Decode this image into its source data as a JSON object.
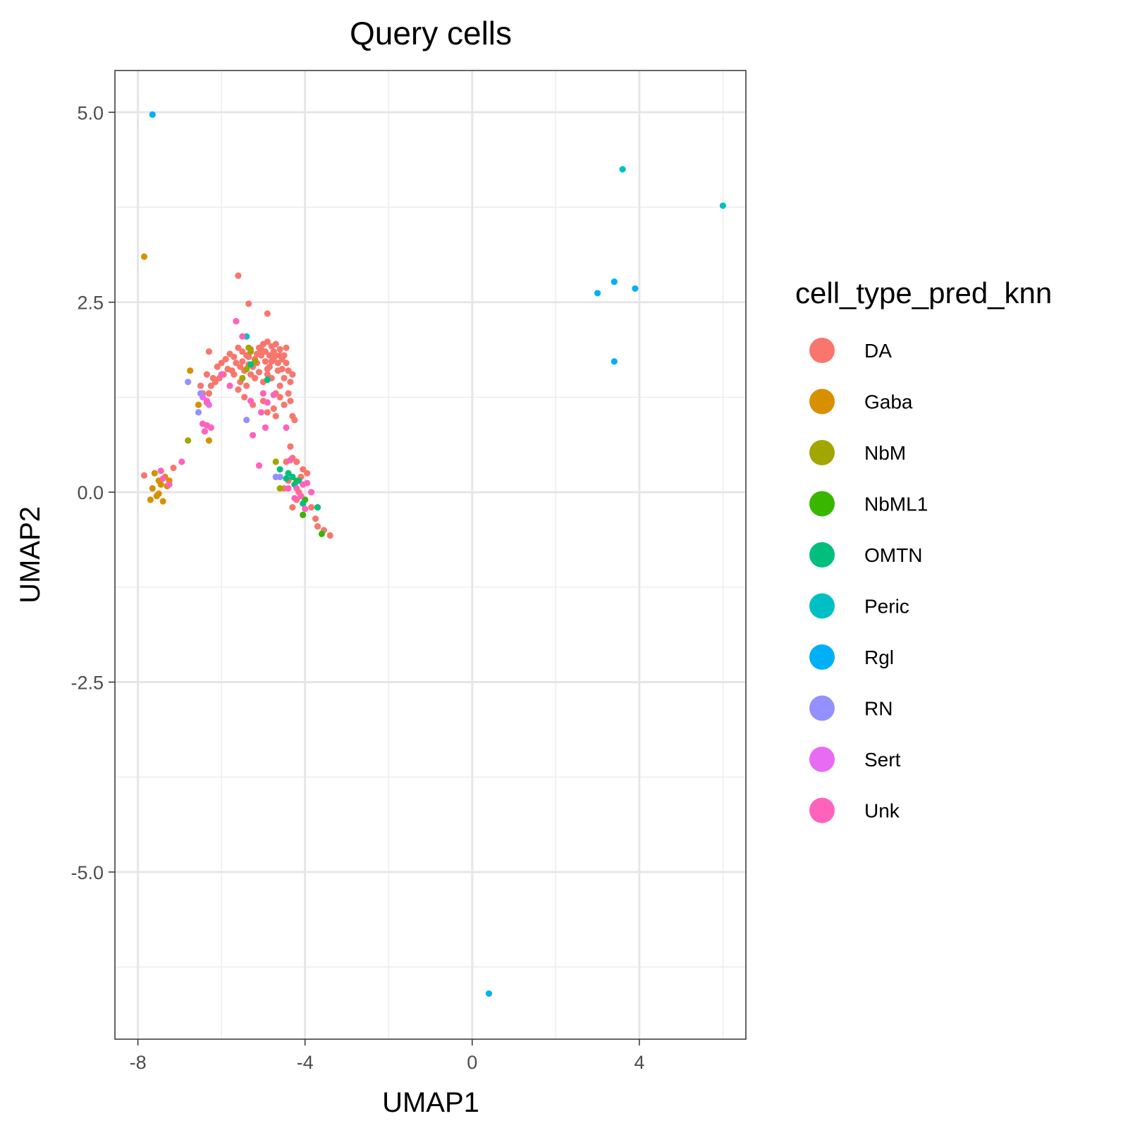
{
  "chart_data": {
    "type": "scatter",
    "title": "Query cells",
    "xlabel": "UMAP1",
    "ylabel": "UMAP2",
    "xlim": [
      -8.55,
      6.55
    ],
    "ylim": [
      -7.2,
      5.55
    ],
    "x_ticks": [
      -8,
      -4,
      0,
      4
    ],
    "x_tick_labels": [
      "-8",
      "-4",
      "0",
      "4"
    ],
    "y_ticks": [
      5.0,
      2.5,
      0.0,
      -2.5,
      -5.0
    ],
    "y_tick_labels": [
      "5.0",
      "2.5",
      "0.0",
      "-2.5",
      "-5.0"
    ],
    "grid": true,
    "legend": {
      "title": "cell_type_pred_knn",
      "position": "right",
      "entries": [
        "DA",
        "Gaba",
        "NbM",
        "NbML1",
        "OMTN",
        "Peric",
        "Rgl",
        "RN",
        "Sert",
        "Unk"
      ]
    },
    "colors": {
      "DA": "#F8766D",
      "Gaba": "#D89000",
      "NbM": "#A3A500",
      "NbML1": "#39B600",
      "OMTN": "#00BF7D",
      "Peric": "#00BFC4",
      "Rgl": "#00B0F6",
      "RN": "#9590FF",
      "Sert": "#E76BF3",
      "Unk": "#FF62BC"
    },
    "series": [
      {
        "name": "DA",
        "points": [
          [
            -7.85,
            0.22
          ],
          [
            -5.6,
            2.85
          ],
          [
            -5.35,
            2.48
          ],
          [
            -4.9,
            2.35
          ],
          [
            -6.3,
            1.85
          ],
          [
            -6.5,
            1.4
          ],
          [
            -6.45,
            1.3
          ],
          [
            -6.35,
            1.55
          ],
          [
            -6.2,
            1.5
          ],
          [
            -6.1,
            1.65
          ],
          [
            -6.0,
            1.7
          ],
          [
            -5.9,
            1.75
          ],
          [
            -5.8,
            1.82
          ],
          [
            -5.7,
            1.78
          ],
          [
            -5.6,
            1.9
          ],
          [
            -5.5,
            1.85
          ],
          [
            -5.4,
            1.8
          ],
          [
            -5.3,
            1.88
          ],
          [
            -5.2,
            1.75
          ],
          [
            -5.1,
            1.9
          ],
          [
            -5.0,
            1.95
          ],
          [
            -4.9,
            1.98
          ],
          [
            -4.8,
            1.92
          ],
          [
            -4.7,
            1.95
          ],
          [
            -4.6,
            1.88
          ],
          [
            -4.5,
            1.8
          ],
          [
            -4.45,
            1.7
          ],
          [
            -4.55,
            1.75
          ],
          [
            -4.65,
            1.7
          ],
          [
            -4.75,
            1.85
          ],
          [
            -4.85,
            1.8
          ],
          [
            -4.95,
            1.72
          ],
          [
            -5.05,
            1.8
          ],
          [
            -5.15,
            1.7
          ],
          [
            -5.25,
            1.65
          ],
          [
            -5.35,
            1.68
          ],
          [
            -5.45,
            1.6
          ],
          [
            -5.55,
            1.65
          ],
          [
            -5.65,
            1.7
          ],
          [
            -5.75,
            1.6
          ],
          [
            -5.85,
            1.62
          ],
          [
            -5.95,
            1.55
          ],
          [
            -6.05,
            1.5
          ],
          [
            -6.15,
            1.45
          ],
          [
            -6.25,
            1.4
          ],
          [
            -4.4,
            1.6
          ],
          [
            -4.3,
            1.55
          ],
          [
            -4.35,
            1.45
          ],
          [
            -4.5,
            1.5
          ],
          [
            -4.6,
            1.4
          ],
          [
            -4.7,
            1.3
          ],
          [
            -4.8,
            1.5
          ],
          [
            -5.0,
            1.45
          ],
          [
            -5.2,
            1.5
          ],
          [
            -5.4,
            1.4
          ],
          [
            -5.6,
            1.35
          ],
          [
            -4.9,
            1.55
          ],
          [
            -5.1,
            1.58
          ],
          [
            -5.3,
            1.55
          ],
          [
            -4.55,
            1.62
          ],
          [
            -4.4,
            1.3
          ],
          [
            -4.35,
            1.2
          ],
          [
            -4.5,
            1.15
          ],
          [
            -4.6,
            1.25
          ],
          [
            -4.75,
            1.1
          ],
          [
            -4.7,
            1.0
          ],
          [
            -4.9,
            1.05
          ],
          [
            -5.0,
            1.2
          ],
          [
            -5.25,
            1.15
          ],
          [
            -5.45,
            1.25
          ],
          [
            -4.3,
            1.0
          ],
          [
            -4.25,
            0.95
          ],
          [
            -4.35,
            0.6
          ],
          [
            -4.45,
            0.4
          ],
          [
            -4.3,
            0.45
          ],
          [
            -4.2,
            0.4
          ],
          [
            -4.05,
            0.3
          ],
          [
            -3.95,
            0.25
          ],
          [
            -4.1,
            0.2
          ],
          [
            -4.25,
            0.1
          ],
          [
            -4.4,
            0.15
          ],
          [
            -4.5,
            0.05
          ],
          [
            -4.15,
            0.0
          ],
          [
            -4.2,
            -0.1
          ],
          [
            -4.3,
            -0.2
          ],
          [
            -3.85,
            -0.2
          ],
          [
            -3.75,
            -0.35
          ],
          [
            -3.7,
            -0.45
          ],
          [
            -3.55,
            -0.5
          ],
          [
            -3.4,
            -0.57
          ],
          [
            -4.7,
            1.8
          ],
          [
            -4.85,
            1.65
          ],
          [
            -5.05,
            1.88
          ],
          [
            -4.65,
            1.6
          ],
          [
            -5.15,
            1.82
          ],
          [
            -5.5,
            1.72
          ],
          [
            -4.8,
            1.72
          ],
          [
            -4.95,
            1.85
          ],
          [
            -4.6,
            1.8
          ],
          [
            -5.35,
            1.78
          ],
          [
            -4.9,
            1.62
          ],
          [
            -5.7,
            1.55
          ],
          [
            -6.35,
            1.18
          ],
          [
            -6.3,
            1.3
          ],
          [
            -7.15,
            0.32
          ],
          [
            -5.55,
            1.45
          ],
          [
            -4.45,
            1.9
          ],
          [
            -4.75,
            1.75
          ]
        ]
      },
      {
        "name": "Gaba",
        "points": [
          [
            -7.85,
            3.1
          ],
          [
            -6.75,
            1.6
          ],
          [
            -6.55,
            1.15
          ],
          [
            -6.3,
            0.68
          ],
          [
            -7.7,
            -0.1
          ],
          [
            -7.65,
            0.05
          ],
          [
            -7.55,
            -0.05
          ],
          [
            -7.5,
            0.15
          ],
          [
            -7.45,
            0.1
          ],
          [
            -7.4,
            -0.12
          ],
          [
            -7.35,
            0.2
          ],
          [
            -7.3,
            0.08
          ],
          [
            -7.25,
            0.15
          ],
          [
            -7.5,
            -0.02
          ],
          [
            -7.6,
            0.25
          ]
        ]
      },
      {
        "name": "NbM",
        "points": [
          [
            -6.8,
            0.68
          ],
          [
            -5.35,
            1.9
          ],
          [
            -5.2,
            1.72
          ],
          [
            -5.4,
            1.62
          ],
          [
            -5.5,
            1.5
          ],
          [
            -5.3,
            1.85
          ],
          [
            -4.7,
            0.4
          ],
          [
            -4.6,
            0.05
          ]
        ]
      },
      {
        "name": "NbML1",
        "points": [
          [
            -4.05,
            -0.3
          ],
          [
            -3.6,
            -0.55
          ],
          [
            -4.0,
            -0.1
          ],
          [
            -4.2,
            0.15
          ]
        ]
      },
      {
        "name": "OMTN",
        "points": [
          [
            -4.9,
            1.48
          ],
          [
            -5.3,
            1.68
          ],
          [
            -4.6,
            0.3
          ],
          [
            -4.4,
            0.25
          ],
          [
            -4.3,
            0.2
          ],
          [
            -4.15,
            0.15
          ],
          [
            -3.7,
            -0.2
          ],
          [
            -4.05,
            -0.15
          ],
          [
            -4.25,
            0.1
          ],
          [
            -4.45,
            0.18
          ]
        ]
      },
      {
        "name": "Peric",
        "points": [
          [
            -5.4,
            2.05
          ],
          [
            3.6,
            4.25
          ],
          [
            6.0,
            3.77
          ]
        ]
      },
      {
        "name": "Rgl",
        "points": [
          [
            -7.65,
            4.97
          ],
          [
            3.0,
            2.62
          ],
          [
            3.4,
            2.77
          ],
          [
            3.9,
            2.68
          ],
          [
            3.4,
            1.72
          ],
          [
            0.4,
            -6.6
          ]
        ]
      },
      {
        "name": "RN",
        "points": [
          [
            -6.8,
            1.45
          ],
          [
            -6.5,
            1.3
          ],
          [
            -6.4,
            0.8
          ],
          [
            -5.4,
            0.95
          ],
          [
            -4.7,
            0.2
          ],
          [
            -4.6,
            0.2
          ],
          [
            -6.55,
            1.05
          ]
        ]
      },
      {
        "name": "Sert",
        "points": [
          [
            -6.3,
            1.15
          ],
          [
            -6.45,
            1.25
          ]
        ]
      },
      {
        "name": "Unk",
        "points": [
          [
            -5.65,
            2.25
          ],
          [
            -5.5,
            2.05
          ],
          [
            -5.8,
            1.4
          ],
          [
            -6.0,
            1.55
          ],
          [
            -6.35,
            1.2
          ],
          [
            -6.45,
            0.9
          ],
          [
            -6.35,
            0.88
          ],
          [
            -6.4,
            0.8
          ],
          [
            -6.25,
            0.85
          ],
          [
            -6.95,
            0.4
          ],
          [
            -7.45,
            0.28
          ],
          [
            -7.4,
            0.18
          ],
          [
            -7.25,
            0.1
          ],
          [
            -5.25,
            0.75
          ],
          [
            -4.95,
            0.85
          ],
          [
            -4.45,
            0.85
          ],
          [
            -5.1,
            0.35
          ],
          [
            -4.35,
            0.42
          ],
          [
            -4.4,
            0.05
          ],
          [
            -4.2,
            0.05
          ],
          [
            -4.05,
            0.1
          ],
          [
            -3.95,
            0.12
          ],
          [
            -3.85,
            0.0
          ],
          [
            -4.1,
            -0.05
          ],
          [
            -4.25,
            -0.08
          ],
          [
            -4.0,
            -0.22
          ],
          [
            -5.05,
            1.05
          ],
          [
            -5.3,
            1.2
          ],
          [
            -5.0,
            1.3
          ],
          [
            -4.9,
            1.18
          ],
          [
            -4.75,
            1.28
          ]
        ]
      }
    ]
  }
}
